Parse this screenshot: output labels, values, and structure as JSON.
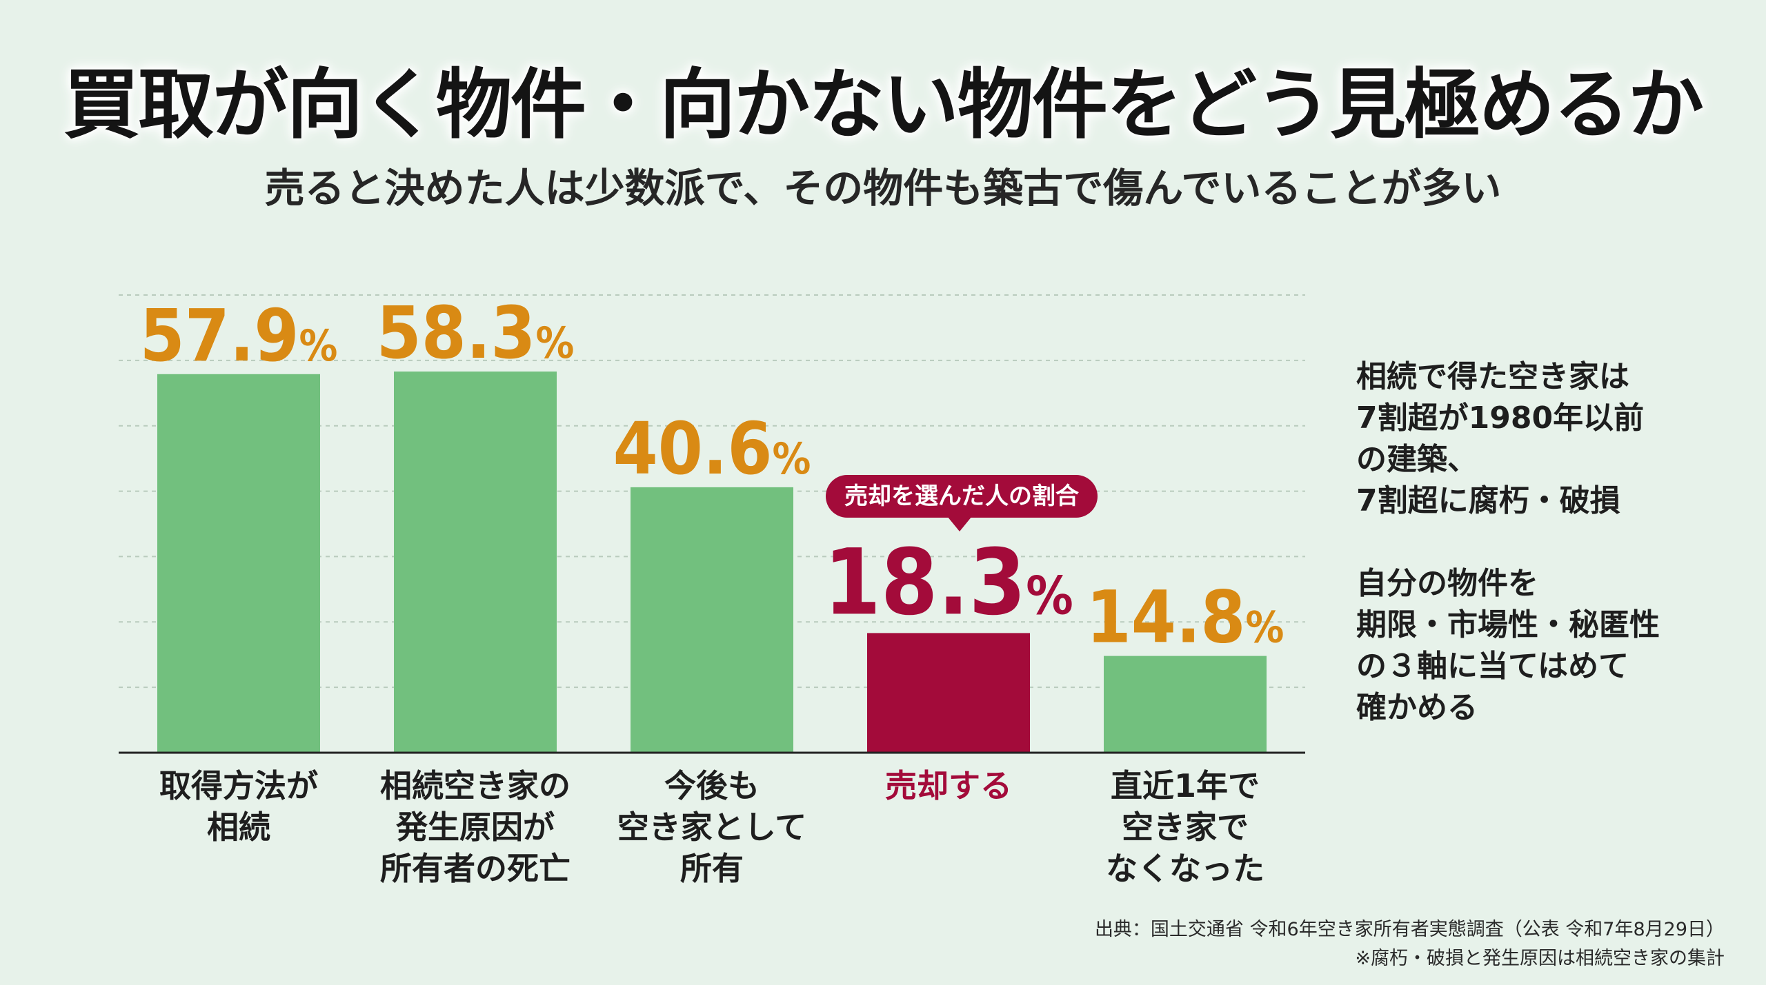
{
  "title": "買取が向く物件・向かない物件をどう見極めるか",
  "subtitle": "売ると決めた人は少数派で、その物件も築古で傷んでいることが多い",
  "callout": "売却を選んだ人の割合",
  "colors": {
    "bar": "#72c07e",
    "highlight": "#a30b3a",
    "value_text": "#d98a14",
    "background": "#e7f2ea"
  },
  "chart_data": {
    "type": "bar",
    "categories": [
      [
        "取得方法が",
        "相続"
      ],
      [
        "相続空き家の",
        "発生原因が",
        "所有者の死亡"
      ],
      [
        "今後も",
        "空き家として",
        "所有"
      ],
      [
        "売却する"
      ],
      [
        "直近1年で",
        "空き家で",
        "なくなった"
      ]
    ],
    "values": [
      57.9,
      58.3,
      40.6,
      18.3,
      14.8
    ],
    "value_labels": [
      "57.9",
      "58.3",
      "40.6",
      "18.3",
      "14.8"
    ],
    "unit": "%",
    "highlight_index": 3,
    "ylim": [
      0,
      70
    ],
    "grid": true
  },
  "side_notes": [
    [
      "相続で得た空き家は",
      "7割超が1980年以前",
      "の建築、",
      "7割超に腐朽・破損"
    ],
    [
      "自分の物件を",
      "期限・市場性・秘匿性",
      "の３軸に当てはめて",
      "確かめる"
    ]
  ],
  "source": "出典：国土交通省 令和6年空き家所有者実態調査（公表 令和7年8月29日）",
  "note": "※腐朽・破損と発生原因は相続空き家の集計"
}
